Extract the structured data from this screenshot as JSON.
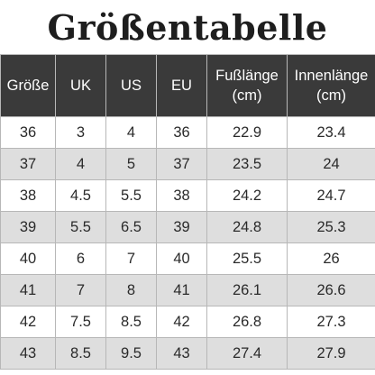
{
  "title": "Größentabelle",
  "table": {
    "headers": [
      {
        "lines": [
          "Größe"
        ]
      },
      {
        "lines": [
          "UK"
        ]
      },
      {
        "lines": [
          "US"
        ]
      },
      {
        "lines": [
          "EU"
        ]
      },
      {
        "lines": [
          "Fußlänge",
          "(cm)"
        ]
      },
      {
        "lines": [
          "Innenlänge",
          "(cm)"
        ]
      }
    ],
    "rows": [
      [
        "36",
        "3",
        "4",
        "36",
        "22.9",
        "23.4"
      ],
      [
        "37",
        "4",
        "5",
        "37",
        "23.5",
        "24"
      ],
      [
        "38",
        "4.5",
        "5.5",
        "38",
        "24.2",
        "24.7"
      ],
      [
        "39",
        "5.5",
        "6.5",
        "39",
        "24.8",
        "25.3"
      ],
      [
        "40",
        "6",
        "7",
        "40",
        "25.5",
        "26"
      ],
      [
        "41",
        "7",
        "8",
        "41",
        "26.1",
        "26.6"
      ],
      [
        "42",
        "7.5",
        "8.5",
        "42",
        "26.8",
        "27.3"
      ],
      [
        "43",
        "8.5",
        "9.5",
        "43",
        "27.4",
        "27.9"
      ]
    ]
  }
}
